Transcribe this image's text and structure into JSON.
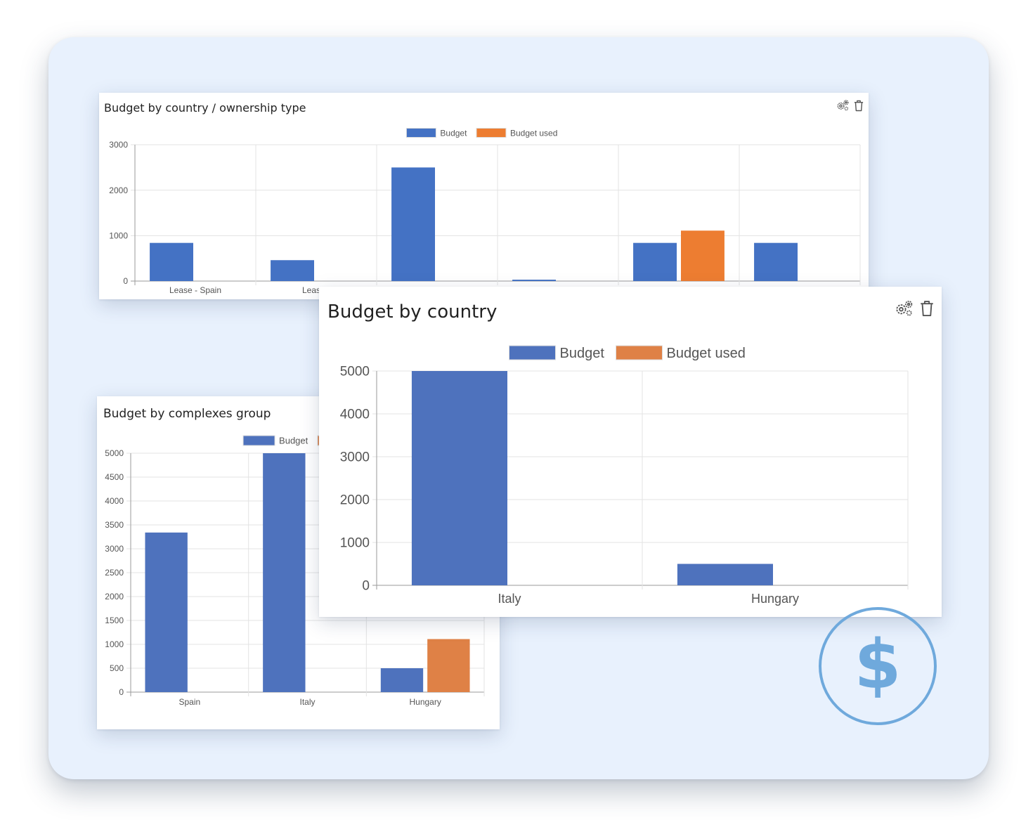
{
  "colors": {
    "budget": "#4472c4",
    "budget_used": "#ed7d31",
    "budget_soft": "#4e72bd",
    "budget_used_soft": "#df8146",
    "dollar": "#6fa9dc"
  },
  "icons": {
    "settings": "gears-icon",
    "delete": "trash-icon",
    "currency": "dollar-icon"
  },
  "currency_symbol": "$",
  "chart_data": [
    {
      "id": "ownership",
      "type": "bar",
      "title": "Budget by country / ownership type",
      "categories": [
        "Lease - Spain",
        "Lease -",
        "",
        "",
        "",
        ""
      ],
      "series": [
        {
          "name": "Budget",
          "values": [
            840,
            460,
            2500,
            30,
            840,
            840
          ]
        },
        {
          "name": "Budget used",
          "values": [
            0,
            0,
            0,
            0,
            1110,
            0
          ]
        }
      ],
      "ylim": [
        0,
        3000
      ],
      "yticks": [
        0,
        1000,
        2000,
        3000
      ],
      "xlabel": "",
      "ylabel": "",
      "grid": true,
      "legend": "top-center"
    },
    {
      "id": "complexes",
      "type": "bar",
      "title": "Budget by complexes group",
      "categories": [
        "Spain",
        "Italy",
        "Hungary"
      ],
      "series": [
        {
          "name": "Budget",
          "values": [
            3340,
            5000,
            500
          ]
        },
        {
          "name": "",
          "values": [
            0,
            0,
            1110
          ]
        }
      ],
      "ylim": [
        0,
        5000
      ],
      "yticks": [
        0,
        500,
        1000,
        1500,
        2000,
        2500,
        3000,
        3500,
        4000,
        4500,
        5000
      ],
      "xlabel": "",
      "ylabel": "",
      "grid": true,
      "legend": "top-center"
    },
    {
      "id": "country",
      "type": "bar",
      "title": "Budget by country",
      "categories": [
        "Italy",
        "Hungary"
      ],
      "series": [
        {
          "name": "Budget",
          "values": [
            5000,
            500
          ]
        },
        {
          "name": "Budget used",
          "values": [
            0,
            0
          ]
        }
      ],
      "ylim": [
        0,
        5000
      ],
      "yticks": [
        0,
        1000,
        2000,
        3000,
        4000,
        5000
      ],
      "xlabel": "",
      "ylabel": "",
      "grid": true,
      "legend": "top-center"
    }
  ]
}
